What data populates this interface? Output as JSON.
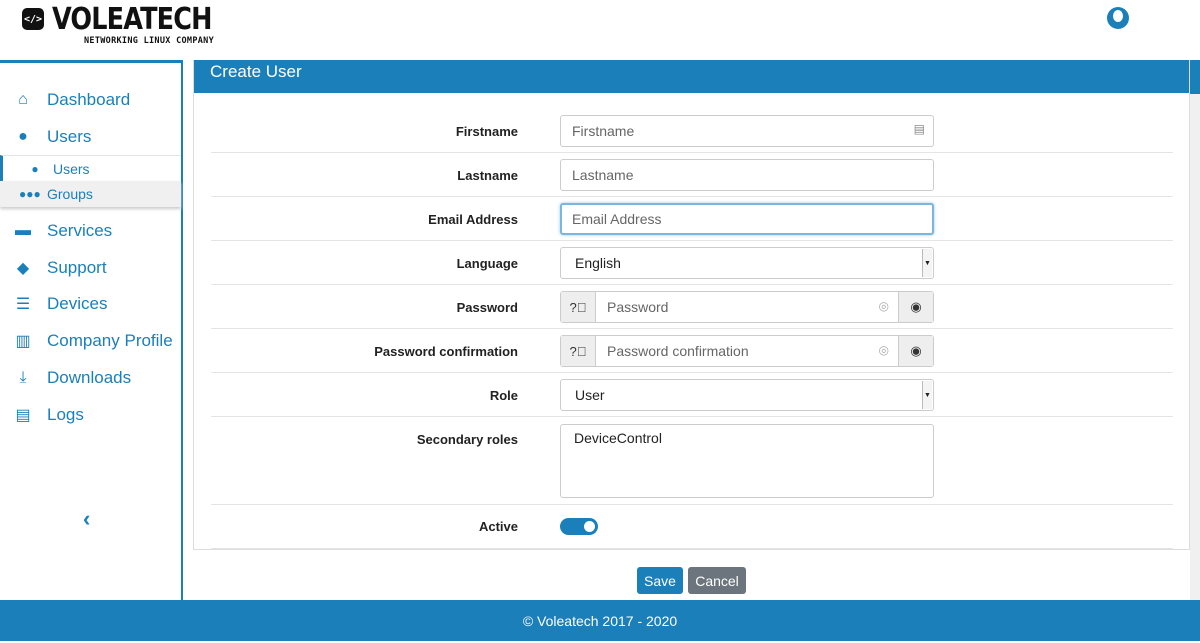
{
  "brand": {
    "name": "VOLEATECH",
    "tagline": "NETWORKING LINUX COMPANY",
    "badge": "</>"
  },
  "sidebar": {
    "items": [
      {
        "label": "Dashboard",
        "icon": "home-icon"
      },
      {
        "label": "Users",
        "icon": "user-icon"
      },
      {
        "label": "Services",
        "icon": "hand-icon"
      },
      {
        "label": "Support",
        "icon": "diamond-icon"
      },
      {
        "label": "Devices",
        "icon": "server-icon"
      },
      {
        "label": "Company Profile",
        "icon": "building-icon"
      },
      {
        "label": "Downloads",
        "icon": "download-icon"
      },
      {
        "label": "Logs",
        "icon": "file-icon"
      }
    ],
    "subitems": [
      {
        "label": "Users",
        "icon": "user-icon"
      },
      {
        "label": "Groups",
        "icon": "users-icon"
      }
    ],
    "collapse": "‹"
  },
  "panel": {
    "title": "Create User"
  },
  "form": {
    "firstname": {
      "label": "Firstname",
      "placeholder": "Firstname"
    },
    "lastname": {
      "label": "Lastname",
      "placeholder": "Lastname"
    },
    "email": {
      "label": "Email Address",
      "placeholder": "Email Address"
    },
    "language": {
      "label": "Language",
      "value": "English"
    },
    "password": {
      "label": "Password",
      "placeholder": "Password"
    },
    "password_confirmation": {
      "label": "Password confirmation",
      "placeholder": "Password confirmation"
    },
    "role": {
      "label": "Role",
      "value": "User"
    },
    "secondary_roles": {
      "label": "Secondary roles",
      "value": "DeviceControl"
    },
    "active": {
      "label": "Active",
      "value": true
    }
  },
  "actions": {
    "save": "Save",
    "cancel": "Cancel"
  },
  "footer": {
    "text": "© Voleatech 2017 - 2020"
  },
  "colors": {
    "primary": "#1b7fba",
    "cancel": "#6c757d"
  }
}
